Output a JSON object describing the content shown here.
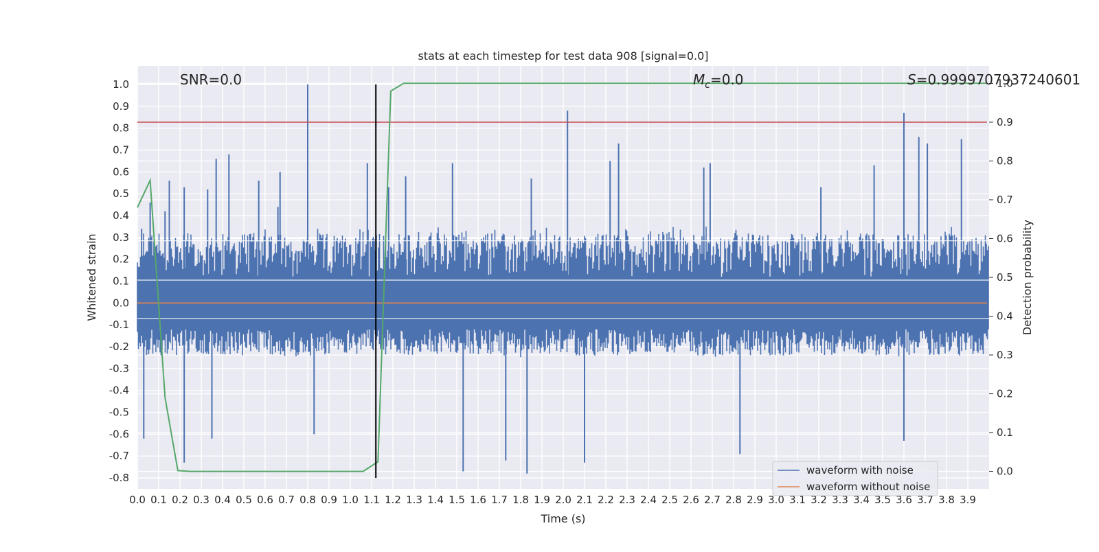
{
  "chart_data": {
    "type": "line",
    "title": "stats at each timestep for test data 908 [signal=0.0]",
    "xlabel": "Time (s)",
    "ylabel": "Whitened strain",
    "y2label": "Detection probability",
    "xlim": [
      0.0,
      4.0
    ],
    "ylim": [
      -0.85,
      1.085
    ],
    "y2lim": [
      -0.045,
      1.045
    ],
    "x_ticks": [
      0.0,
      0.1,
      0.2,
      0.3,
      0.4,
      0.5,
      0.6,
      0.7,
      0.8,
      0.9,
      1.0,
      1.1,
      1.2,
      1.3,
      1.4,
      1.5,
      1.6,
      1.7,
      1.8,
      1.9,
      2.0,
      2.1,
      2.2,
      2.3,
      2.4,
      2.5,
      2.6,
      2.7,
      2.8,
      2.9,
      3.0,
      3.1,
      3.2,
      3.3,
      3.4,
      3.5,
      3.6,
      3.7,
      3.8,
      3.9
    ],
    "y_ticks": [
      1.0,
      0.9,
      0.8,
      0.7,
      0.6,
      0.5,
      0.4,
      0.3,
      0.2,
      0.1,
      0.0,
      -0.1,
      -0.2,
      -0.3,
      -0.4,
      -0.5,
      -0.6,
      -0.7,
      -0.8
    ],
    "y2_ticks": [
      1.0,
      0.9,
      0.8,
      0.7,
      0.6,
      0.5,
      0.4,
      0.3,
      0.2,
      0.1,
      0.0
    ],
    "annotations": {
      "snr": "SNR=0.0",
      "mc_symbol": "M",
      "mc_sub": "c",
      "mc_value": "=0.0",
      "s_symbol": "S",
      "s_value": "=0.9999707937240601"
    },
    "legend": {
      "placement": "lower-right",
      "entries": [
        "waveform with noise",
        "waveform without noise"
      ]
    },
    "colors": {
      "noise": "#4c72b0",
      "clean": "#dd8452",
      "probability": "#55a868",
      "threshold": "#c44e52",
      "marker": "#000000",
      "axes_bg": "#eaeaf2",
      "grid": "#ffffff"
    },
    "series": [
      {
        "name": "waveform with noise",
        "axis": "left",
        "style": "noise",
        "band": [
          -0.25,
          0.35
        ],
        "spikes": [
          {
            "x": 0.02,
            "y": 0.34
          },
          {
            "x": 0.03,
            "y": -0.62
          },
          {
            "x": 0.06,
            "y": 0.46
          },
          {
            "x": 0.13,
            "y": 0.42
          },
          {
            "x": 0.15,
            "y": 0.56
          },
          {
            "x": 0.22,
            "y": 0.53
          },
          {
            "x": 0.22,
            "y": -0.73
          },
          {
            "x": 0.33,
            "y": 0.52
          },
          {
            "x": 0.35,
            "y": -0.62
          },
          {
            "x": 0.37,
            "y": 0.66
          },
          {
            "x": 0.43,
            "y": 0.68
          },
          {
            "x": 0.57,
            "y": 0.56
          },
          {
            "x": 0.66,
            "y": 0.44
          },
          {
            "x": 0.67,
            "y": 0.6
          },
          {
            "x": 0.8,
            "y": 1.0
          },
          {
            "x": 0.83,
            "y": -0.6
          },
          {
            "x": 1.08,
            "y": 0.64
          },
          {
            "x": 1.18,
            "y": 0.53
          },
          {
            "x": 1.26,
            "y": 0.58
          },
          {
            "x": 1.48,
            "y": 0.64
          },
          {
            "x": 1.53,
            "y": -0.77
          },
          {
            "x": 1.73,
            "y": -0.72
          },
          {
            "x": 1.83,
            "y": -0.78
          },
          {
            "x": 1.85,
            "y": 0.57
          },
          {
            "x": 2.02,
            "y": 0.88
          },
          {
            "x": 2.1,
            "y": -0.73
          },
          {
            "x": 2.22,
            "y": 0.65
          },
          {
            "x": 2.26,
            "y": 0.73
          },
          {
            "x": 2.66,
            "y": 0.62
          },
          {
            "x": 2.69,
            "y": 0.64
          },
          {
            "x": 2.83,
            "y": -0.69
          },
          {
            "x": 3.21,
            "y": 0.53
          },
          {
            "x": 3.46,
            "y": 0.63
          },
          {
            "x": 3.6,
            "y": 0.87
          },
          {
            "x": 3.6,
            "y": -0.63
          },
          {
            "x": 3.67,
            "y": 0.76
          },
          {
            "x": 3.71,
            "y": 0.73
          },
          {
            "x": 3.87,
            "y": 0.75
          }
        ]
      },
      {
        "name": "waveform without noise",
        "axis": "left",
        "x": [
          0.0,
          3.99
        ],
        "y": [
          0.0,
          0.0
        ]
      },
      {
        "name": "detection probability",
        "axis": "right",
        "x": [
          0.0,
          0.06,
          0.13,
          0.19,
          0.25,
          1.06,
          1.13,
          1.19,
          1.25,
          3.99
        ],
        "y": [
          0.68,
          0.75,
          0.19,
          0.002,
          0.0,
          0.0,
          0.025,
          0.98,
          1.0,
          1.0
        ]
      },
      {
        "name": "threshold",
        "axis": "right",
        "x": [
          0.0,
          3.99
        ],
        "y": [
          0.9,
          0.9
        ]
      }
    ],
    "vertical_marker": {
      "x": 1.12,
      "y_from": -0.8,
      "y_to": 1.0
    }
  }
}
